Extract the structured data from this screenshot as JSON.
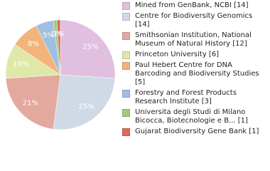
{
  "chart_data": {
    "type": "pie",
    "categories": [
      "Mined from GenBank, NCBI [14]",
      "Centre for Biodiversity Genomics [14]",
      "Smithsonian Institution, National Museum of Natural History [12]",
      "Princeton University [6]",
      "Paul Hebert Centre for DNA Barcoding and Biodiversity Studies [5]",
      "Forestry and Forest Products Research Institute [3]",
      "Universita degli Studi di Milano Bicocca, Biotecnologie e B... [1]",
      "Gujarat Biodiversity Gene Bank [1]"
    ],
    "values": [
      25,
      25,
      21,
      10,
      8,
      5,
      1,
      1
    ],
    "value_labels": [
      "25%",
      "25%",
      "21%",
      "10%",
      "8%",
      "5%",
      "1%",
      "1%"
    ],
    "colors": [
      "#e0bfe0",
      "#cfdae6",
      "#e3a89e",
      "#e0e8a9",
      "#f2b47b",
      "#a1bde2",
      "#9ecb7e",
      "#db6c5b"
    ],
    "legend": "right"
  }
}
